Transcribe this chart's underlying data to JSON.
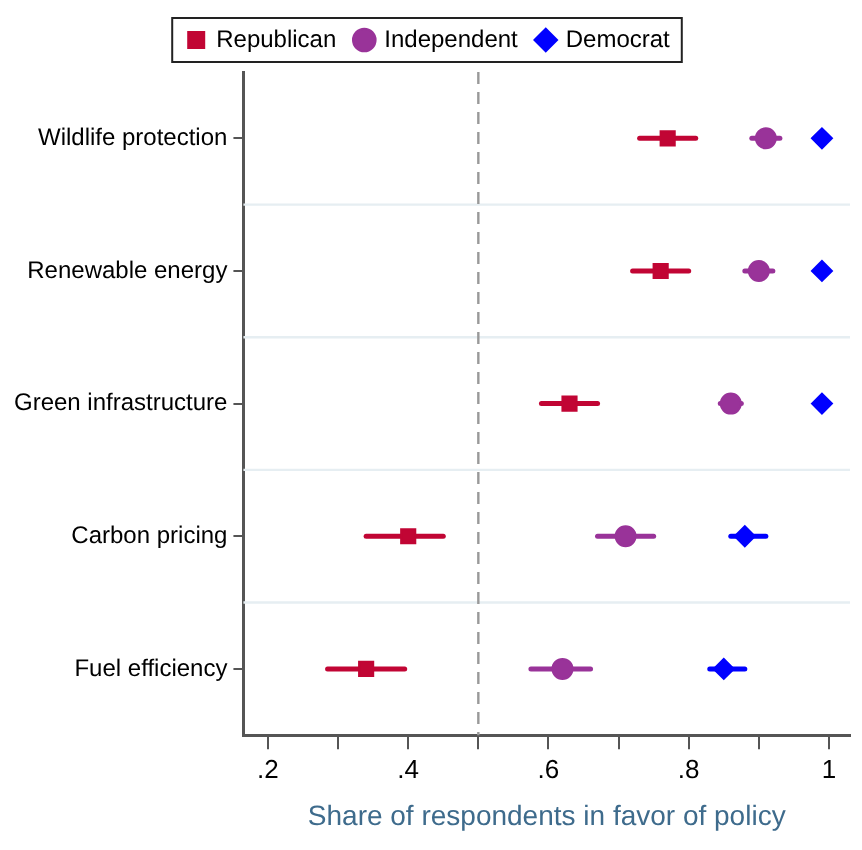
{
  "chart_data": {
    "type": "scatter",
    "orientation": "horizontal",
    "xlabel": "Share of respondents in favor of policy",
    "categories": [
      "Wildlife protection",
      "Renewable energy",
      "Green infrastructure",
      "Carbon pricing",
      "Fuel efficiency"
    ],
    "series": [
      {
        "name": "Republican",
        "color": "#c10534",
        "marker": "square",
        "values": [
          0.77,
          0.76,
          0.63,
          0.4,
          0.34
        ],
        "errors": [
          [
            0.73,
            0.81
          ],
          [
            0.72,
            0.8
          ],
          [
            0.59,
            0.67
          ],
          [
            0.34,
            0.45
          ],
          [
            0.285,
            0.395
          ]
        ]
      },
      {
        "name": "Independent",
        "color": "#993399",
        "marker": "circle",
        "values": [
          0.91,
          0.9,
          0.86,
          0.71,
          0.62
        ],
        "errors": [
          [
            0.89,
            0.93
          ],
          [
            0.88,
            0.92
          ],
          [
            0.845,
            0.875
          ],
          [
            0.67,
            0.75
          ],
          [
            0.575,
            0.66
          ]
        ]
      },
      {
        "name": "Democrat",
        "color": "#0000ff",
        "marker": "diamond",
        "values": [
          0.99,
          0.99,
          0.99,
          0.88,
          0.85
        ],
        "errors": [
          null,
          null,
          null,
          [
            0.86,
            0.91
          ],
          [
            0.83,
            0.88
          ]
        ]
      }
    ],
    "xlim": [
      0.165,
      1.03
    ],
    "xticks": [
      {
        "value": 0.2,
        "label": ".2"
      },
      {
        "value": 0.3,
        "label": null
      },
      {
        "value": 0.4,
        "label": ".4"
      },
      {
        "value": 0.5,
        "label": null
      },
      {
        "value": 0.6,
        "label": ".6"
      },
      {
        "value": 0.7,
        "label": null
      },
      {
        "value": 0.8,
        "label": ".8"
      },
      {
        "value": 0.9,
        "label": null
      },
      1
    ],
    "ref_lines": [
      {
        "axis": "x",
        "value": 0.5,
        "color": "#999999",
        "line_style": "dashed"
      }
    ],
    "grid": "y",
    "legend": "top"
  }
}
